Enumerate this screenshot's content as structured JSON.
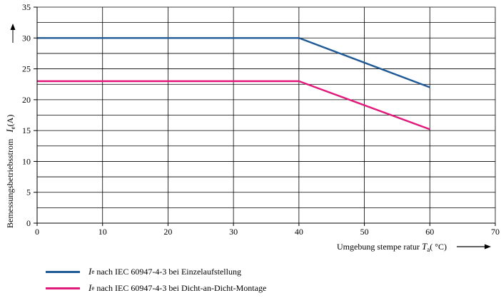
{
  "chart_data": {
    "type": "line",
    "xlabel": {
      "prefix": "Umgebung stempe ratur ",
      "symbol": "T",
      "subscript": "a",
      "unit": "( °C)"
    },
    "ylabel": {
      "prefix": "Bemessungsbetriebsstrom",
      "symbol": "I",
      "subscript": "e",
      "unit": "(A)"
    },
    "xlim": [
      0,
      70
    ],
    "ylim": [
      0,
      35
    ],
    "xticks": [
      0,
      10,
      20,
      30,
      40,
      50,
      60,
      70
    ],
    "yticks": [
      0,
      5,
      10,
      15,
      20,
      25,
      30,
      35
    ],
    "grid": true,
    "legend_position": "bottom-left",
    "series": [
      {
        "name": "nach IEC 60947-4-3 bei Einzelaufstellung",
        "symbol": "I",
        "subscript": "e",
        "color": "#1f5a96",
        "x": [
          0,
          40,
          60
        ],
        "y": [
          30,
          30,
          22
        ]
      },
      {
        "name": "nach IEC 60947-4-3 bei Dicht-an-Dicht-Montage",
        "symbol": "I",
        "subscript": "e",
        "color": "#e0197a",
        "x": [
          0,
          40,
          60
        ],
        "y": [
          23,
          23,
          15.2
        ]
      }
    ]
  }
}
